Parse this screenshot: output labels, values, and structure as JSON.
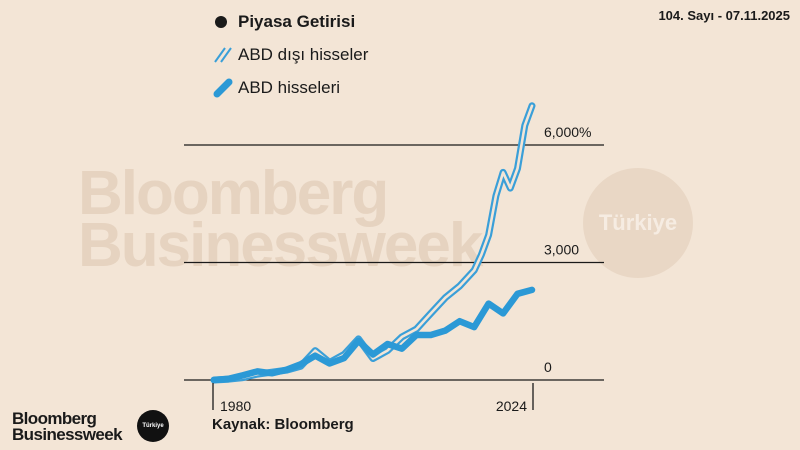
{
  "header": {
    "issue": "104. Sayı - 07.11.2025"
  },
  "legend": {
    "title": "Piyasa Getirisi",
    "items": [
      {
        "label": "ABD dışı hisseler",
        "style": "double-outline",
        "color": "#3a9fd8"
      },
      {
        "label": "ABD hisseleri",
        "style": "solid",
        "color": "#2b99d6"
      }
    ]
  },
  "watermark": {
    "line1": "Bloomberg",
    "line2": "Businessweek",
    "badge": "Türkiye"
  },
  "footer": {
    "source": "Kaynak: Bloomberg",
    "logo_line1": "Bloomberg",
    "logo_line2": "Businessweek",
    "logo_badge": "Türkiye"
  },
  "colors": {
    "background": "#f3e5d6",
    "accent": "#2b99d6",
    "grid": "#1a1a1a"
  },
  "chart_data": {
    "type": "line",
    "title": "Piyasa Getirisi",
    "xlabel": "",
    "ylabel": "",
    "xlim": [
      1980,
      2024
    ],
    "ylim": [
      0,
      6000
    ],
    "x_ticks": [
      "1980",
      "2024"
    ],
    "y_ticks": [
      {
        "value": 0,
        "label": "0"
      },
      {
        "value": 3000,
        "label": "3,000"
      },
      {
        "value": 6000,
        "label": "6,000%"
      }
    ],
    "grid": true,
    "legend_position": "top-left",
    "series": [
      {
        "name": "ABD dışı hisseler",
        "x": [
          1980,
          1982,
          1984,
          1986,
          1988,
          1990,
          1992,
          1994,
          1996,
          1998,
          2000,
          2002,
          2004,
          2006,
          2008,
          2009,
          2010,
          2012,
          2014,
          2016,
          2017,
          2018,
          2019,
          2020,
          2021,
          2022,
          2023,
          2024
        ],
        "values": [
          0,
          20,
          60,
          150,
          200,
          250,
          350,
          750,
          450,
          650,
          1050,
          550,
          750,
          1100,
          1300,
          1500,
          1700,
          2100,
          2400,
          2800,
          3200,
          3700,
          4700,
          5300,
          4900,
          5400,
          6500,
          7000
        ]
      },
      {
        "name": "ABD hisseleri",
        "x": [
          1980,
          1982,
          1984,
          1986,
          1988,
          1990,
          1992,
          1994,
          1996,
          1998,
          2000,
          2002,
          2004,
          2006,
          2008,
          2010,
          2012,
          2014,
          2016,
          2018,
          2020,
          2022,
          2024
        ],
        "values": [
          0,
          30,
          120,
          220,
          170,
          260,
          400,
          620,
          420,
          560,
          1000,
          650,
          920,
          800,
          1150,
          1150,
          1260,
          1500,
          1350,
          1950,
          1700,
          2200,
          2300
        ]
      }
    ]
  }
}
